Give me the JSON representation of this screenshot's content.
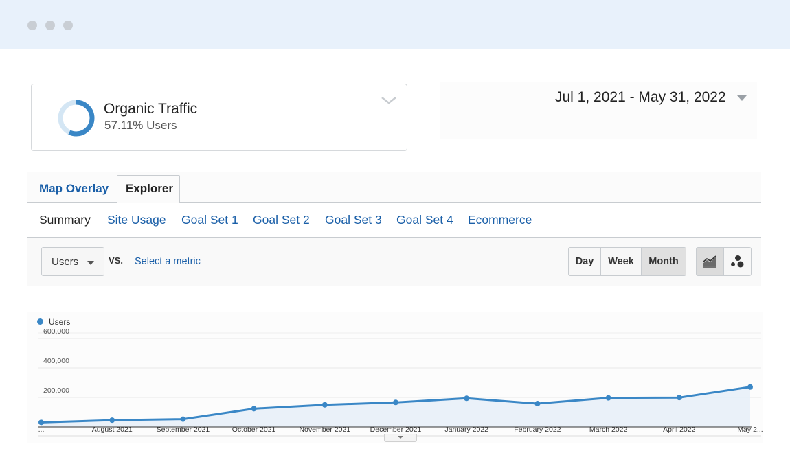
{
  "segment": {
    "title": "Organic Traffic",
    "subtitle": "57.11% Users",
    "percent": 57.11
  },
  "date_range": "Jul 1, 2021 - May 31, 2022",
  "tabs": [
    {
      "label": "Map Overlay",
      "active": false
    },
    {
      "label": "Explorer",
      "active": true
    }
  ],
  "subtabs": [
    "Summary",
    "Site Usage",
    "Goal Set 1",
    "Goal Set 2",
    "Goal Set 3",
    "Goal Set 4",
    "Ecommerce"
  ],
  "toolbar": {
    "metric": "Users",
    "vs": "VS.",
    "select_metric": "Select a metric",
    "periods": [
      {
        "label": "Day",
        "active": false
      },
      {
        "label": "Week",
        "active": false
      },
      {
        "label": "Month",
        "active": true
      }
    ]
  },
  "colors": {
    "accent": "#3a87c6",
    "link": "#1a5fa8",
    "area_fill": "#e6eff8"
  },
  "chart_data": {
    "type": "area",
    "series": [
      {
        "name": "Users",
        "values": [
          31000,
          46000,
          53000,
          124000,
          150000,
          166000,
          194000,
          158000,
          197000,
          199000,
          271000
        ]
      }
    ],
    "categories": [
      "...",
      "August 2021",
      "September 2021",
      "October 2021",
      "November 2021",
      "December 2021",
      "January 2022",
      "February 2022",
      "March 2022",
      "April 2022",
      "May 2..."
    ],
    "yticks": [
      "600,000",
      "400,000",
      "200,000"
    ],
    "ytick_values": [
      600000,
      400000,
      200000
    ],
    "ylim": [
      0,
      600000
    ],
    "legend": "top-left",
    "grid": true
  }
}
